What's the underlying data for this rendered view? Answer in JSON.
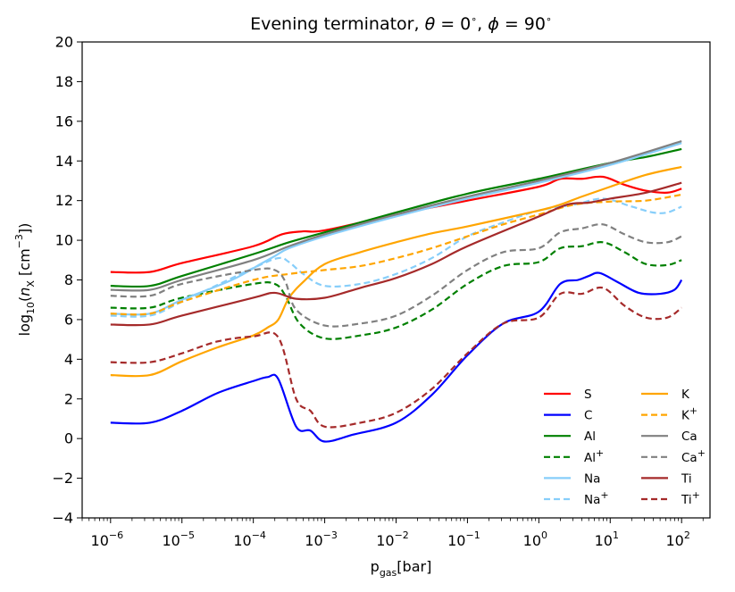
{
  "chart_data": {
    "type": "line",
    "title": "Evening terminator, θ = 0 °, ϕ = 90 °",
    "title_parts": {
      "prefix": "Evening terminator, ",
      "theta": "θ",
      "theta_val": " = 0",
      "phi": "ϕ",
      "phi_val": " = 90",
      "degree": "∘"
    },
    "xlabel": {
      "base": "p",
      "sub": "gas",
      "unit": "[bar]"
    },
    "ylabel": {
      "prefix": "log",
      "sub": "10",
      "paren_open": "(",
      "n": "n",
      "n_sub": "X",
      "unit": " [cm",
      "exp": "−3",
      "close": "])"
    },
    "xscale": "log",
    "xlim": [
      4e-07,
      250
    ],
    "ylim": [
      -4,
      20
    ],
    "y_ticks": [
      "20",
      "18",
      "16",
      "14",
      "12",
      "10",
      "8",
      "6",
      "4",
      "2",
      "0",
      "−2",
      "−4"
    ],
    "y_tick_values": [
      20,
      18,
      16,
      14,
      12,
      10,
      8,
      6,
      4,
      2,
      0,
      -2,
      -4
    ],
    "x_ticks": [
      {
        "base": "10",
        "exp": "−6",
        "exponent": -6
      },
      {
        "base": "10",
        "exp": "−5",
        "exponent": -5
      },
      {
        "base": "10",
        "exp": "−4",
        "exponent": -4
      },
      {
        "base": "10",
        "exp": "−3",
        "exponent": -3
      },
      {
        "base": "10",
        "exp": "−2",
        "exponent": -2
      },
      {
        "base": "10",
        "exp": "−1",
        "exponent": -1
      },
      {
        "base": "10",
        "exp": "0",
        "exponent": 0
      },
      {
        "base": "10",
        "exp": "1",
        "exponent": 1
      },
      {
        "base": "10",
        "exp": "2",
        "exponent": 2
      }
    ],
    "legend": {
      "location": "lower-right",
      "columns": 2
    },
    "series": [
      {
        "name": "S",
        "label": "S",
        "sup": "",
        "color": "#ff0000",
        "dash": "solid",
        "points": [
          [
            -6,
            8.4
          ],
          [
            -5.45,
            8.4
          ],
          [
            -5,
            8.85
          ],
          [
            -4,
            9.7
          ],
          [
            -3.6,
            10.3
          ],
          [
            -3.3,
            10.45
          ],
          [
            -3,
            10.5
          ],
          [
            -2,
            11.3
          ],
          [
            -1,
            12.0
          ],
          [
            0,
            12.7
          ],
          [
            0.3,
            13.1
          ],
          [
            0.6,
            13.1
          ],
          [
            0.9,
            13.2
          ],
          [
            1.2,
            12.8
          ],
          [
            1.5,
            12.5
          ],
          [
            1.8,
            12.4
          ],
          [
            2,
            12.6
          ]
        ]
      },
      {
        "name": "C",
        "label": "C",
        "sup": "",
        "color": "#0000ff",
        "dash": "solid",
        "points": [
          [
            -6,
            0.8
          ],
          [
            -5.45,
            0.8
          ],
          [
            -5,
            1.4
          ],
          [
            -4.5,
            2.3
          ],
          [
            -4,
            2.9
          ],
          [
            -3.8,
            3.1
          ],
          [
            -3.65,
            3.0
          ],
          [
            -3.4,
            0.6
          ],
          [
            -3.2,
            0.4
          ],
          [
            -3.0,
            -0.15
          ],
          [
            -2.6,
            0.2
          ],
          [
            -2,
            0.8
          ],
          [
            -1.5,
            2.2
          ],
          [
            -1,
            4.2
          ],
          [
            -0.5,
            5.8
          ],
          [
            0,
            6.4
          ],
          [
            0.3,
            7.8
          ],
          [
            0.55,
            8.0
          ],
          [
            0.7,
            8.2
          ],
          [
            0.85,
            8.35
          ],
          [
            1.1,
            7.9
          ],
          [
            1.4,
            7.35
          ],
          [
            1.7,
            7.3
          ],
          [
            1.9,
            7.5
          ],
          [
            2,
            8.0
          ]
        ]
      },
      {
        "name": "Al",
        "label": "Al",
        "sup": "",
        "color": "#008000",
        "dash": "solid",
        "points": [
          [
            -6,
            7.7
          ],
          [
            -5.45,
            7.7
          ],
          [
            -5,
            8.2
          ],
          [
            -4,
            9.3
          ],
          [
            -3.5,
            9.9
          ],
          [
            -3,
            10.4
          ],
          [
            -2,
            11.4
          ],
          [
            -1,
            12.35
          ],
          [
            0,
            13.1
          ],
          [
            1,
            13.9
          ],
          [
            1.5,
            14.2
          ],
          [
            2,
            14.6
          ]
        ]
      },
      {
        "name": "Al+",
        "label": "Al",
        "sup": "+",
        "color": "#008000",
        "dash": "dashed",
        "points": [
          [
            -6,
            6.6
          ],
          [
            -5.45,
            6.6
          ],
          [
            -5,
            7.1
          ],
          [
            -4,
            7.8
          ],
          [
            -3.7,
            7.8
          ],
          [
            -3.55,
            7.2
          ],
          [
            -3.35,
            5.8
          ],
          [
            -3,
            5.05
          ],
          [
            -2.5,
            5.2
          ],
          [
            -2,
            5.6
          ],
          [
            -1.5,
            6.5
          ],
          [
            -1,
            7.8
          ],
          [
            -0.5,
            8.7
          ],
          [
            0,
            8.9
          ],
          [
            0.3,
            9.6
          ],
          [
            0.6,
            9.7
          ],
          [
            0.9,
            9.9
          ],
          [
            1.2,
            9.4
          ],
          [
            1.5,
            8.8
          ],
          [
            1.8,
            8.75
          ],
          [
            2,
            9.0
          ]
        ]
      },
      {
        "name": "Na",
        "label": "Na",
        "sup": "",
        "color": "#87cefa",
        "dash": "solid",
        "points": [
          [
            -6,
            6.3
          ],
          [
            -5.45,
            6.3
          ],
          [
            -5,
            7.0
          ],
          [
            -4.3,
            8.0
          ],
          [
            -3.9,
            8.8
          ],
          [
            -3.7,
            9.2
          ],
          [
            -3.5,
            9.6
          ],
          [
            -3,
            10.2
          ],
          [
            -2,
            11.2
          ],
          [
            -1,
            12.1
          ],
          [
            0,
            12.9
          ],
          [
            1,
            13.8
          ],
          [
            2,
            14.9
          ]
        ]
      },
      {
        "name": "Na+",
        "label": "Na",
        "sup": "+",
        "color": "#87cefa",
        "dash": "dashed",
        "points": [
          [
            -6,
            6.2
          ],
          [
            -5.45,
            6.2
          ],
          [
            -5,
            6.9
          ],
          [
            -4,
            8.6
          ],
          [
            -3.65,
            9.1
          ],
          [
            -3.5,
            8.9
          ],
          [
            -3.3,
            8.3
          ],
          [
            -3,
            7.7
          ],
          [
            -2.5,
            7.8
          ],
          [
            -2,
            8.3
          ],
          [
            -1.5,
            9.1
          ],
          [
            -1,
            10.2
          ],
          [
            -0.5,
            10.9
          ],
          [
            0,
            11.5
          ],
          [
            0.5,
            11.8
          ],
          [
            0.9,
            12.1
          ],
          [
            1.3,
            11.7
          ],
          [
            1.6,
            11.4
          ],
          [
            1.8,
            11.4
          ],
          [
            2,
            11.7
          ]
        ]
      },
      {
        "name": "K",
        "label": "K",
        "sup": "",
        "color": "#ffa500",
        "dash": "solid",
        "points": [
          [
            -6,
            3.2
          ],
          [
            -5.45,
            3.2
          ],
          [
            -5,
            3.9
          ],
          [
            -4.5,
            4.6
          ],
          [
            -4,
            5.2
          ],
          [
            -3.8,
            5.6
          ],
          [
            -3.65,
            6.0
          ],
          [
            -3.5,
            7.1
          ],
          [
            -3.3,
            7.9
          ],
          [
            -3,
            8.8
          ],
          [
            -2.5,
            9.4
          ],
          [
            -2,
            9.9
          ],
          [
            -1.5,
            10.35
          ],
          [
            -1,
            10.7
          ],
          [
            0,
            11.5
          ],
          [
            0.3,
            11.8
          ],
          [
            0.6,
            12.2
          ],
          [
            1,
            12.7
          ],
          [
            1.5,
            13.3
          ],
          [
            2,
            13.7
          ]
        ]
      },
      {
        "name": "K+",
        "label": "K",
        "sup": "+",
        "color": "#ffa500",
        "dash": "dashed",
        "points": [
          [
            -6,
            6.3
          ],
          [
            -5.45,
            6.3
          ],
          [
            -5,
            6.9
          ],
          [
            -4,
            8.0
          ],
          [
            -3.5,
            8.3
          ],
          [
            -3,
            8.5
          ],
          [
            -2.5,
            8.7
          ],
          [
            -2,
            9.1
          ],
          [
            -1.5,
            9.6
          ],
          [
            -1,
            10.2
          ],
          [
            -0.5,
            10.8
          ],
          [
            0,
            11.3
          ],
          [
            0.5,
            11.8
          ],
          [
            1,
            11.95
          ],
          [
            1.5,
            12.0
          ],
          [
            2,
            12.3
          ]
        ]
      },
      {
        "name": "Ca",
        "label": "Ca",
        "sup": "",
        "color": "#808080",
        "dash": "solid",
        "points": [
          [
            -6,
            7.5
          ],
          [
            -5.45,
            7.5
          ],
          [
            -5,
            8.0
          ],
          [
            -4,
            9.0
          ],
          [
            -3.5,
            9.7
          ],
          [
            -3,
            10.3
          ],
          [
            -2,
            11.3
          ],
          [
            -1,
            12.2
          ],
          [
            0,
            13.0
          ],
          [
            1,
            13.9
          ],
          [
            2,
            15.0
          ]
        ]
      },
      {
        "name": "Ca+",
        "label": "Ca",
        "sup": "+",
        "color": "#808080",
        "dash": "dashed",
        "points": [
          [
            -6,
            7.2
          ],
          [
            -5.45,
            7.2
          ],
          [
            -5,
            7.8
          ],
          [
            -4,
            8.5
          ],
          [
            -3.7,
            8.5
          ],
          [
            -3.55,
            7.9
          ],
          [
            -3.4,
            6.5
          ],
          [
            -3,
            5.7
          ],
          [
            -2.5,
            5.8
          ],
          [
            -2,
            6.2
          ],
          [
            -1.5,
            7.2
          ],
          [
            -1,
            8.5
          ],
          [
            -0.5,
            9.4
          ],
          [
            0,
            9.6
          ],
          [
            0.3,
            10.4
          ],
          [
            0.6,
            10.6
          ],
          [
            0.9,
            10.8
          ],
          [
            1.2,
            10.3
          ],
          [
            1.5,
            9.9
          ],
          [
            1.8,
            9.9
          ],
          [
            2,
            10.2
          ]
        ]
      },
      {
        "name": "Ti",
        "label": "Ti",
        "sup": "",
        "color": "#a52a2a",
        "dash": "solid",
        "points": [
          [
            -6,
            5.75
          ],
          [
            -5.45,
            5.75
          ],
          [
            -5,
            6.2
          ],
          [
            -4,
            7.1
          ],
          [
            -3.7,
            7.35
          ],
          [
            -3.4,
            7.05
          ],
          [
            -3,
            7.1
          ],
          [
            -2.5,
            7.6
          ],
          [
            -2,
            8.1
          ],
          [
            -1.5,
            8.8
          ],
          [
            -1,
            9.7
          ],
          [
            0,
            11.2
          ],
          [
            0.4,
            11.8
          ],
          [
            0.7,
            11.9
          ],
          [
            1,
            12.1
          ],
          [
            1.5,
            12.4
          ],
          [
            2,
            12.9
          ]
        ]
      },
      {
        "name": "Ti+",
        "label": "Ti",
        "sup": "+",
        "color": "#a52a2a",
        "dash": "dashed",
        "points": [
          [
            -6,
            3.85
          ],
          [
            -5.45,
            3.85
          ],
          [
            -5,
            4.3
          ],
          [
            -4.5,
            4.9
          ],
          [
            -4,
            5.15
          ],
          [
            -3.65,
            5.1
          ],
          [
            -3.4,
            2.0
          ],
          [
            -3.2,
            1.4
          ],
          [
            -3,
            0.6
          ],
          [
            -2.5,
            0.8
          ],
          [
            -2,
            1.3
          ],
          [
            -1.5,
            2.5
          ],
          [
            -1,
            4.3
          ],
          [
            -0.5,
            5.8
          ],
          [
            0,
            6.1
          ],
          [
            0.3,
            7.3
          ],
          [
            0.6,
            7.3
          ],
          [
            0.9,
            7.6
          ],
          [
            1.2,
            6.7
          ],
          [
            1.5,
            6.1
          ],
          [
            1.8,
            6.1
          ],
          [
            2,
            6.6
          ]
        ]
      }
    ]
  }
}
